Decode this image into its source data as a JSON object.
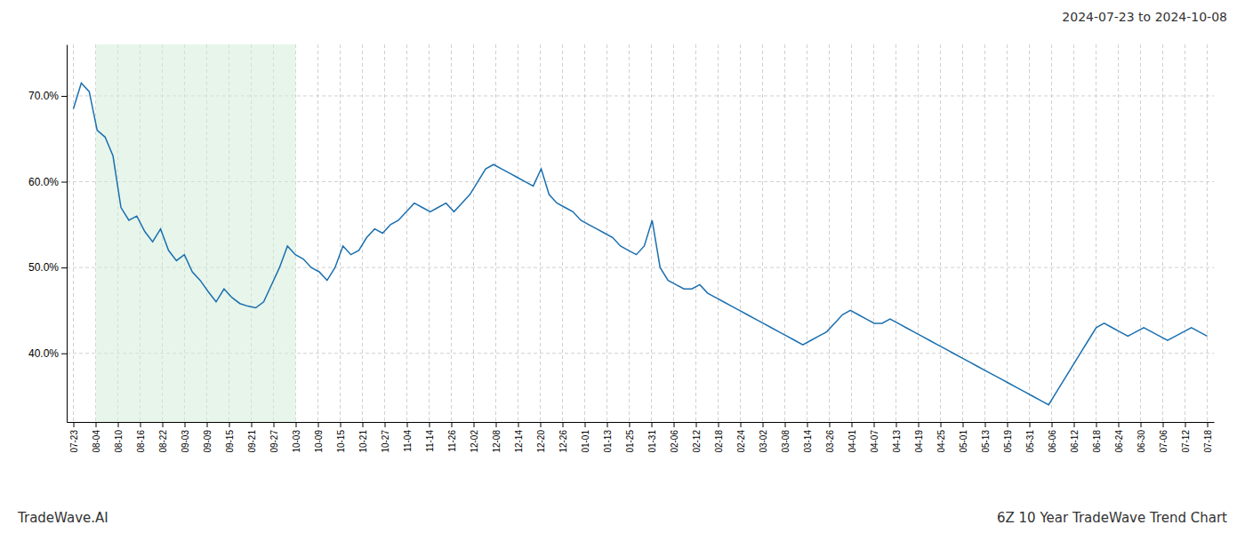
{
  "chart_data": {
    "type": "line",
    "title": "6Z 10 Year TradeWave Trend Chart",
    "subtitle": "2024-07-23 to 2024-10-08",
    "annotations": [
      "TradeWave.AI"
    ],
    "color": "#1a6faf",
    "grid": true,
    "shade": {
      "x": [
        1,
        10
      ],
      "color": "#d4edda"
    },
    "xlim": [
      -0.3,
      51.3
    ],
    "xticks": [
      {
        "value": 0,
        "label": "07-23"
      },
      {
        "value": 1,
        "label": "08-04"
      },
      {
        "value": 2,
        "label": "08-10"
      },
      {
        "value": 3,
        "label": "08-16"
      },
      {
        "value": 4,
        "label": "08-22"
      },
      {
        "value": 5,
        "label": "09-03"
      },
      {
        "value": 6,
        "label": "09-09"
      },
      {
        "value": 7,
        "label": "09-15"
      },
      {
        "value": 8,
        "label": "09-21"
      },
      {
        "value": 9,
        "label": "09-27"
      },
      {
        "value": 10,
        "label": "10-03"
      },
      {
        "value": 11,
        "label": "10-09"
      },
      {
        "value": 12,
        "label": "10-15"
      },
      {
        "value": 13,
        "label": "10-21"
      },
      {
        "value": 14,
        "label": "10-27"
      },
      {
        "value": 15,
        "label": "11-04"
      },
      {
        "value": 16,
        "label": "11-14"
      },
      {
        "value": 17,
        "label": "11-26"
      },
      {
        "value": 18,
        "label": "12-02"
      },
      {
        "value": 19,
        "label": "12-08"
      },
      {
        "value": 20,
        "label": "12-14"
      },
      {
        "value": 21,
        "label": "12-20"
      },
      {
        "value": 22,
        "label": "12-26"
      },
      {
        "value": 23,
        "label": "01-01"
      },
      {
        "value": 24,
        "label": "01-13"
      },
      {
        "value": 25,
        "label": "01-25"
      },
      {
        "value": 26,
        "label": "01-31"
      },
      {
        "value": 27,
        "label": "02-06"
      },
      {
        "value": 28,
        "label": "02-12"
      },
      {
        "value": 29,
        "label": "02-18"
      },
      {
        "value": 30,
        "label": "02-24"
      },
      {
        "value": 31,
        "label": "03-02"
      },
      {
        "value": 32,
        "label": "03-08"
      },
      {
        "value": 33,
        "label": "03-14"
      },
      {
        "value": 34,
        "label": "03-26"
      },
      {
        "value": 35,
        "label": "04-01"
      },
      {
        "value": 36,
        "label": "04-07"
      },
      {
        "value": 37,
        "label": "04-13"
      },
      {
        "value": 38,
        "label": "04-19"
      },
      {
        "value": 39,
        "label": "04-25"
      },
      {
        "value": 40,
        "label": "05-01"
      },
      {
        "value": 41,
        "label": "05-13"
      },
      {
        "value": 42,
        "label": "05-19"
      },
      {
        "value": 43,
        "label": "05-31"
      },
      {
        "value": 44,
        "label": "06-06"
      },
      {
        "value": 45,
        "label": "06-12"
      },
      {
        "value": 46,
        "label": "06-18"
      },
      {
        "value": 47,
        "label": "06-24"
      },
      {
        "value": 48,
        "label": "06-30"
      },
      {
        "value": 49,
        "label": "07-06"
      },
      {
        "value": 50,
        "label": "07-12"
      },
      {
        "value": 51,
        "label": "07-18"
      }
    ],
    "ylim": [
      32,
      76
    ],
    "yticks": [
      {
        "value": 40.0,
        "label": "40.0%"
      },
      {
        "value": 50.0,
        "label": "50.0%"
      },
      {
        "value": 60.0,
        "label": "60.0%"
      },
      {
        "value": 70.0,
        "label": "70.0%"
      }
    ],
    "values": [
      68.5,
      71.5,
      70.5,
      66.0,
      65.2,
      63.0,
      57.0,
      55.5,
      56.0,
      54.2,
      53.0,
      54.5,
      52.0,
      50.8,
      51.5,
      49.5,
      48.5,
      47.2,
      46.0,
      47.5,
      46.5,
      45.8,
      45.5,
      45.3,
      46.0,
      48.0,
      50.0,
      52.5,
      51.5,
      51.0,
      50.0,
      49.5,
      48.5,
      50.0,
      52.5,
      51.5,
      52.0,
      53.5,
      54.5,
      54.0,
      55.0,
      55.5,
      56.5,
      57.5,
      57.0,
      56.5,
      57.0,
      57.5,
      56.5,
      57.5,
      58.5,
      60.0,
      61.5,
      62.0,
      61.5,
      61.0,
      60.5,
      60.0,
      59.5,
      61.5,
      58.5,
      57.5,
      57.0,
      56.5,
      55.5,
      55.0,
      54.5,
      54.0,
      53.5,
      52.5,
      52.0,
      51.5,
      52.5,
      55.5,
      50.0,
      48.5,
      48.0,
      47.5,
      47.5,
      48.0,
      47.0,
      46.5,
      46.0,
      45.5,
      45.0,
      44.5,
      44.0,
      43.5,
      43.0,
      42.5,
      42.0,
      41.5,
      41.0,
      41.5,
      42.0,
      42.5,
      43.5,
      44.5,
      45.0,
      44.5,
      44.0,
      43.5,
      43.5,
      44.0,
      43.5,
      43.0,
      42.5,
      42.0,
      41.5,
      41.0,
      40.5,
      40.0,
      39.5,
      39.0,
      38.5,
      38.0,
      37.5,
      37.0,
      36.5,
      36.0,
      35.5,
      35.0,
      34.5,
      34.0,
      35.5,
      37.0,
      38.5,
      40.0,
      41.5,
      43.0,
      43.5,
      43.0,
      42.5,
      42.0,
      42.5,
      43.0,
      42.5,
      42.0,
      41.5,
      42.0,
      42.5,
      43.0,
      42.5,
      42.0
    ]
  }
}
